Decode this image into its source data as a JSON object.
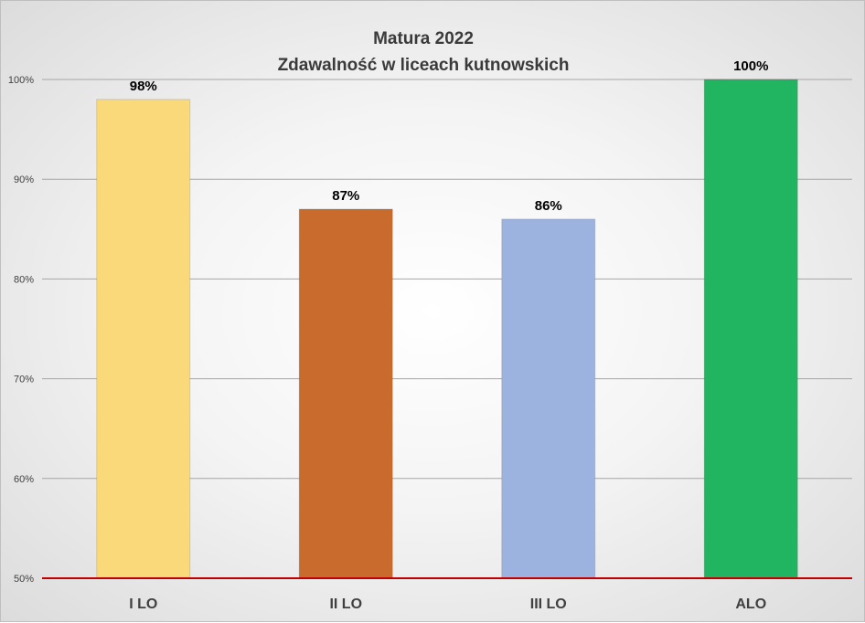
{
  "chart_data": {
    "type": "bar",
    "title_line1": "Matura 2022",
    "title_line2": "Zdawalność w liceach kutnowskich",
    "categories": [
      "I LO",
      "II LO",
      "III LO",
      "ALO"
    ],
    "values": [
      98,
      87,
      86,
      100
    ],
    "data_labels": [
      "98%",
      "87%",
      "86%",
      "100%"
    ],
    "colors": [
      "#fad97a",
      "#ca6b2e",
      "#9db3df",
      "#22b561"
    ],
    "ylim": [
      50,
      100
    ],
    "y_ticks": [
      50,
      60,
      70,
      80,
      90,
      100
    ],
    "y_tick_labels": [
      "50%",
      "60%",
      "70%",
      "80%",
      "90%",
      "100%"
    ],
    "grid": true,
    "baseline_color": "#c00000"
  }
}
